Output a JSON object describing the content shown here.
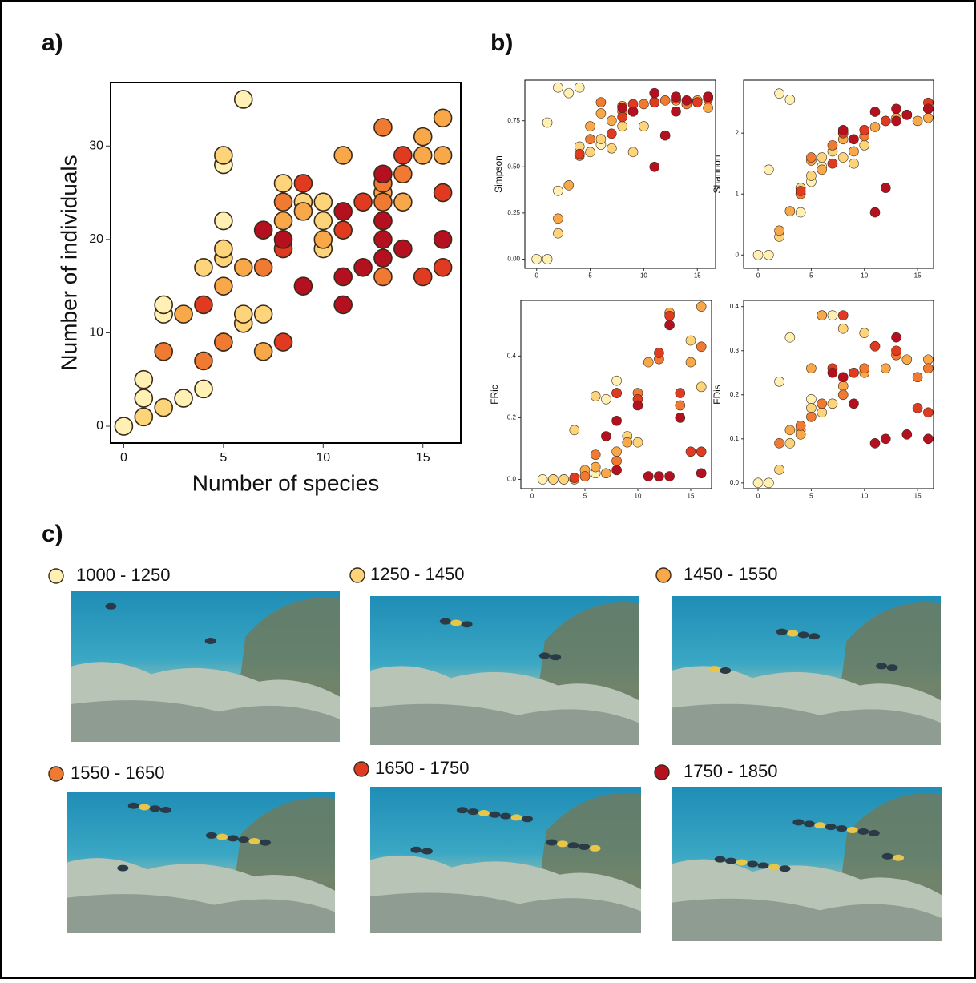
{
  "chart_data": [
    {
      "type": "scatter",
      "panel_label": "a)",
      "x_label": "Number of species",
      "y_label": "Number of individuals",
      "xlim": [
        -0.66,
        16.9
      ],
      "ylim": [
        -1.8,
        36.8
      ],
      "xticks": [
        0,
        5,
        10,
        15
      ],
      "yticks": [
        0,
        10,
        20,
        30
      ],
      "series": [
        {
          "name": "1000 - 1250",
          "color": "#fff1b3",
          "x": [
            0,
            1,
            1,
            2,
            2,
            3,
            4,
            5,
            5,
            6
          ],
          "values": [
            0,
            5,
            3,
            12,
            13,
            3,
            4,
            22,
            28,
            35
          ]
        },
        {
          "name": "1250 - 1450",
          "color": "#fdd479",
          "x": [
            1,
            2,
            5,
            5,
            5,
            6,
            6,
            7,
            4,
            8,
            9,
            10,
            10,
            10
          ],
          "values": [
            1,
            2,
            29,
            18,
            19,
            11,
            12,
            12,
            17,
            26,
            24,
            24,
            22,
            19
          ]
        },
        {
          "name": "1450 - 1550",
          "color": "#f8a848",
          "x": [
            3,
            5,
            5,
            6,
            7,
            8,
            9,
            10,
            11,
            13,
            14,
            15,
            15,
            16,
            16
          ],
          "values": [
            12,
            15,
            9,
            17,
            8,
            22,
            23,
            20,
            29,
            25,
            24,
            31,
            29,
            33,
            29
          ]
        },
        {
          "name": "1550 - 1650",
          "color": "#f07a32",
          "x": [
            2,
            4,
            5,
            7,
            8,
            13,
            13,
            13,
            13,
            14
          ],
          "values": [
            8,
            7,
            9,
            17,
            24,
            32,
            26,
            24,
            16,
            27
          ]
        },
        {
          "name": "1650 - 1750",
          "color": "#e03b20",
          "x": [
            4,
            8,
            8,
            9,
            11,
            12,
            14,
            15,
            16,
            16,
            13
          ],
          "values": [
            13,
            9,
            19,
            26,
            21,
            24,
            29,
            16,
            25,
            17,
            22
          ]
        },
        {
          "name": "1750 - 1850",
          "color": "#b5101f",
          "x": [
            7,
            8,
            9,
            11,
            11,
            11,
            12,
            13,
            13,
            13,
            13,
            14,
            16
          ],
          "values": [
            21,
            20,
            15,
            23,
            16,
            13,
            17,
            27,
            22,
            20,
            18,
            19,
            20
          ]
        }
      ]
    },
    {
      "type": "scatter",
      "panel_label": "b)",
      "y_label": "Simpson",
      "xlim": [
        -1.1,
        16.7
      ],
      "ylim": [
        -0.05,
        0.97
      ],
      "xticks": [
        0,
        5,
        10,
        15
      ],
      "yticks": [
        {
          "value": 0,
          "label": "0.00"
        },
        0.25,
        {
          "value": 0.5,
          "label": "0.50"
        },
        0.75
      ],
      "series": [
        {
          "color": "#fff1b3",
          "x": [
            0,
            1,
            1,
            2,
            2,
            3,
            4,
            6
          ],
          "values": [
            0,
            0,
            0.74,
            0.93,
            0.37,
            0.9,
            0.93,
            0.62
          ]
        },
        {
          "color": "#fdd479",
          "x": [
            2,
            4,
            5,
            6,
            7,
            8,
            9,
            10
          ],
          "values": [
            0.14,
            0.61,
            0.58,
            0.65,
            0.6,
            0.72,
            0.58,
            0.72
          ]
        },
        {
          "color": "#f8a848",
          "x": [
            2,
            3,
            5,
            6,
            7,
            8,
            9,
            11,
            13,
            15,
            16
          ],
          "values": [
            0.22,
            0.4,
            0.72,
            0.79,
            0.75,
            0.83,
            0.8,
            0.85,
            0.86,
            0.86,
            0.82
          ]
        },
        {
          "color": "#f07a32",
          "x": [
            4,
            5,
            6,
            8,
            10,
            12,
            14,
            16
          ],
          "values": [
            0.56,
            0.65,
            0.85,
            0.8,
            0.84,
            0.86,
            0.84,
            0.88
          ]
        },
        {
          "color": "#e03b20",
          "x": [
            4,
            7,
            8,
            9,
            11,
            13,
            15,
            16
          ],
          "values": [
            0.57,
            0.68,
            0.77,
            0.84,
            0.85,
            0.87,
            0.85,
            0.87
          ]
        },
        {
          "color": "#b5101f",
          "x": [
            8,
            9,
            11,
            11,
            12,
            13,
            13,
            14,
            16
          ],
          "values": [
            0.82,
            0.8,
            0.5,
            0.9,
            0.67,
            0.8,
            0.88,
            0.86,
            0.88
          ]
        }
      ]
    },
    {
      "type": "scatter",
      "y_label": "Shannon",
      "xlim": [
        -1.36,
        16.5
      ],
      "ylim": [
        -0.22,
        2.87
      ],
      "xticks": [
        0,
        5,
        10,
        15
      ],
      "yticks": [
        0,
        1,
        2
      ],
      "series": [
        {
          "color": "#fff1b3",
          "x": [
            0,
            1,
            1,
            2,
            3,
            4,
            5,
            6
          ],
          "values": [
            0,
            0,
            1.4,
            2.65,
            2.55,
            0.7,
            1.2,
            1.45
          ]
        },
        {
          "color": "#fdd479",
          "x": [
            2,
            4,
            5,
            6,
            7,
            8,
            9,
            10
          ],
          "values": [
            0.3,
            1.1,
            1.3,
            1.6,
            1.7,
            1.6,
            1.5,
            1.8
          ]
        },
        {
          "color": "#f8a848",
          "x": [
            2,
            3,
            5,
            6,
            8,
            9,
            11,
            13,
            15,
            16
          ],
          "values": [
            0.4,
            0.72,
            1.55,
            1.4,
            1.9,
            1.7,
            2.1,
            2.25,
            2.2,
            2.25
          ]
        },
        {
          "color": "#f07a32",
          "x": [
            4,
            5,
            7,
            8,
            10,
            12,
            14,
            16
          ],
          "values": [
            1.0,
            1.6,
            1.8,
            2.0,
            1.95,
            2.2,
            2.3,
            2.4
          ]
        },
        {
          "color": "#e03b20",
          "x": [
            4,
            7,
            8,
            10,
            12,
            14,
            16
          ],
          "values": [
            1.05,
            1.5,
            2.0,
            2.05,
            2.2,
            2.3,
            2.5
          ]
        },
        {
          "color": "#b5101f",
          "x": [
            8,
            9,
            11,
            11,
            12,
            13,
            13,
            14,
            16
          ],
          "values": [
            2.05,
            1.9,
            0.7,
            2.35,
            1.1,
            2.2,
            2.4,
            2.3,
            2.4
          ]
        }
      ]
    },
    {
      "type": "scatter",
      "y_label": "FRic",
      "xlim": [
        -1.06,
        16.97
      ],
      "ylim": [
        -0.03,
        0.58
      ],
      "xticks": [
        0,
        5,
        10,
        15
      ],
      "yticks": [
        {
          "value": 0,
          "label": "0.0"
        },
        0.2,
        0.4
      ],
      "series": [
        {
          "color": "#fff1b3",
          "x": [
            1,
            2,
            3,
            5,
            6,
            7,
            8
          ],
          "values": [
            0,
            0,
            0,
            0.01,
            0.02,
            0.26,
            0.32
          ]
        },
        {
          "color": "#fdd479",
          "x": [
            2,
            3,
            4,
            6,
            8,
            9,
            10,
            15,
            16
          ],
          "values": [
            0,
            0,
            0.16,
            0.27,
            0.28,
            0.14,
            0.12,
            0.45,
            0.3
          ]
        },
        {
          "color": "#f8a848",
          "x": [
            4,
            5,
            6,
            7,
            8,
            9,
            11,
            13,
            15,
            16
          ],
          "values": [
            0,
            0.03,
            0.04,
            0.02,
            0.09,
            0.12,
            0.38,
            0.54,
            0.38,
            0.56
          ]
        },
        {
          "color": "#f07a32",
          "x": [
            5,
            6,
            8,
            10,
            12,
            14,
            16
          ],
          "values": [
            0.01,
            0.08,
            0.06,
            0.28,
            0.39,
            0.24,
            0.43
          ]
        },
        {
          "color": "#e03b20",
          "x": [
            4,
            8,
            10,
            12,
            13,
            14,
            15,
            16
          ],
          "values": [
            0.005,
            0.28,
            0.26,
            0.41,
            0.53,
            0.28,
            0.09,
            0.09
          ]
        },
        {
          "color": "#b5101f",
          "x": [
            7,
            8,
            8,
            10,
            11,
            12,
            13,
            13,
            14,
            16
          ],
          "values": [
            0.14,
            0.19,
            0.03,
            0.24,
            0.01,
            0.01,
            0.5,
            0.01,
            0.2,
            0.02
          ]
        }
      ]
    },
    {
      "type": "scatter",
      "y_label": "FDis",
      "xlim": [
        -1.36,
        16.5
      ],
      "ylim": [
        -0.013,
        0.414
      ],
      "xticks": [
        0,
        5,
        10,
        15
      ],
      "yticks": [
        {
          "value": 0,
          "label": "0.0"
        },
        0.1,
        0.2,
        0.3,
        0.4
      ],
      "series": [
        {
          "color": "#fff1b3",
          "x": [
            0,
            1,
            2,
            3,
            5,
            6,
            7
          ],
          "values": [
            0,
            0,
            0.23,
            0.33,
            0.19,
            0.38,
            0.38
          ]
        },
        {
          "color": "#fdd479",
          "x": [
            2,
            3,
            4,
            5,
            6,
            7,
            8,
            10
          ],
          "values": [
            0.03,
            0.09,
            0.12,
            0.17,
            0.16,
            0.18,
            0.35,
            0.34
          ]
        },
        {
          "color": "#f8a848",
          "x": [
            3,
            4,
            5,
            6,
            8,
            9,
            10,
            12,
            14,
            16
          ],
          "values": [
            0.12,
            0.11,
            0.26,
            0.38,
            0.22,
            0.25,
            0.25,
            0.26,
            0.28,
            0.28
          ]
        },
        {
          "color": "#f07a32",
          "x": [
            2,
            4,
            5,
            6,
            8,
            10,
            13,
            15,
            16
          ],
          "values": [
            0.09,
            0.13,
            0.15,
            0.18,
            0.2,
            0.26,
            0.29,
            0.24,
            0.26
          ]
        },
        {
          "color": "#e03b20",
          "x": [
            7,
            8,
            9,
            11,
            13,
            15,
            16
          ],
          "values": [
            0.26,
            0.38,
            0.25,
            0.31,
            0.3,
            0.17,
            0.16
          ]
        },
        {
          "color": "#b5101f",
          "x": [
            7,
            8,
            9,
            11,
            12,
            13,
            14,
            16
          ],
          "values": [
            0.25,
            0.24,
            0.18,
            0.09,
            0.1,
            0.33,
            0.11,
            0.1
          ]
        }
      ]
    }
  ],
  "section_c": {
    "label": "c)"
  }
}
